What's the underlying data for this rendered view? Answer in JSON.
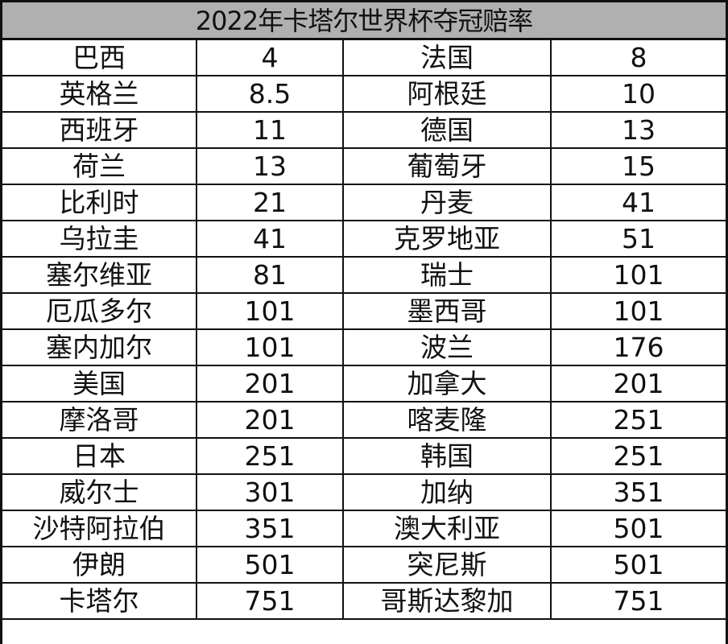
{
  "title": "2022年卡塔尔世界杯夺冠赔率",
  "rows": [
    [
      "巴西",
      "4",
      "法国",
      "8"
    ],
    [
      "英格兰",
      "8.5",
      "阿根廷",
      "10"
    ],
    [
      "西班牙",
      "11",
      "德国",
      "13"
    ],
    [
      "荷兰",
      "13",
      "葡萄牙",
      "15"
    ],
    [
      "比利时",
      "21",
      "丹麦",
      "41"
    ],
    [
      "乌拉圭",
      "41",
      "克罗地亚",
      "51"
    ],
    [
      "塞尔维亚",
      "81",
      "瑞士",
      "101"
    ],
    [
      "厄瓜多尔",
      "101",
      "墨西哥",
      "101"
    ],
    [
      "塞内加尔",
      "101",
      "波兰",
      "176"
    ],
    [
      "美国",
      "201",
      "加拿大",
      "201"
    ],
    [
      "摩洛哥",
      "201",
      "喀麦隆",
      "251"
    ],
    [
      "日本",
      "251",
      "韩国",
      "251"
    ],
    [
      "威尔士",
      "301",
      "加纳",
      "351"
    ],
    [
      "沙特阿拉伯",
      "351",
      "澳大利亚",
      "501"
    ],
    [
      "伊朗",
      "501",
      "突尼斯",
      "501"
    ],
    [
      "卡塔尔",
      "751",
      "哥斯达黎加",
      "751"
    ]
  ]
}
